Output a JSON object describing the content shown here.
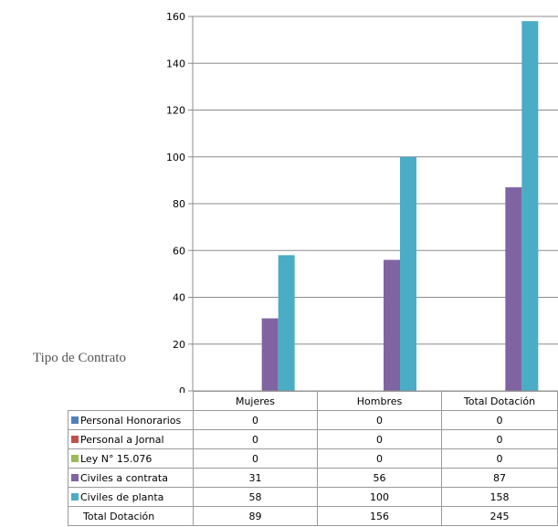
{
  "side_label": "Tipo de Contrato",
  "chart_data": {
    "type": "bar",
    "categories": [
      "Mujeres",
      "Hombres",
      "Total Dotación"
    ],
    "ylim": [
      0,
      160
    ],
    "yticks": [
      "0",
      "20",
      "40",
      "60",
      "80",
      "100",
      "120",
      "140",
      "160"
    ],
    "grid": true,
    "legend": "table-below",
    "series": [
      {
        "name": "Personal Honorarios",
        "color": "#4f81bd",
        "values": [
          0,
          0,
          0
        ]
      },
      {
        "name": "Personal a Jornal",
        "color": "#c0504d",
        "values": [
          0,
          0,
          0
        ]
      },
      {
        "name": "Ley N° 15.076",
        "color": "#9bbb59",
        "values": [
          0,
          0,
          0
        ]
      },
      {
        "name": "Civiles a contrata",
        "color": "#8064a2",
        "values": [
          31,
          56,
          87
        ]
      },
      {
        "name": "Civiles de planta",
        "color": "#4bacc6",
        "values": [
          58,
          100,
          158
        ]
      }
    ],
    "total_row": {
      "name": "Total Dotación",
      "values": [
        89,
        156,
        245
      ]
    }
  }
}
